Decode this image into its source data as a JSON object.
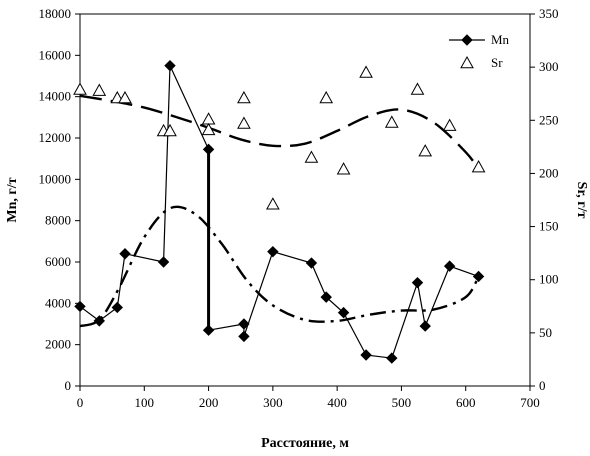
{
  "chart_data": {
    "type": "scatter",
    "xlabel": "Расстояние, м",
    "ylabel": "Mn, г/т",
    "y2label": "Sr, г/т",
    "xlim": [
      0,
      700
    ],
    "ylim": [
      0,
      18000
    ],
    "y2lim": [
      0,
      350
    ],
    "x_ticks": [
      0,
      100,
      200,
      300,
      400,
      500,
      600,
      700
    ],
    "y_ticks": [
      0,
      2000,
      4000,
      6000,
      8000,
      10000,
      12000,
      14000,
      16000,
      18000
    ],
    "y2_ticks": [
      0,
      50,
      100,
      150,
      200,
      250,
      300,
      350
    ],
    "grid": false,
    "legend_position": "top-right",
    "series": [
      {
        "name": "Mn",
        "axis": "left",
        "marker": "diamond",
        "style": "solid-line",
        "points": [
          [
            0,
            3850
          ],
          [
            30,
            3150
          ],
          [
            58,
            3800
          ],
          [
            70,
            6400
          ],
          [
            130,
            6000
          ],
          [
            140,
            15500
          ],
          [
            200,
            11450
          ],
          [
            200,
            2700
          ],
          [
            255,
            3000
          ],
          [
            255,
            2400
          ],
          [
            300,
            6500
          ],
          [
            360,
            5950
          ],
          [
            383,
            4300
          ],
          [
            410,
            3550
          ],
          [
            445,
            1500
          ],
          [
            485,
            1350
          ],
          [
            525,
            5000
          ],
          [
            537,
            2900
          ],
          [
            575,
            5800
          ],
          [
            620,
            5300
          ]
        ]
      },
      {
        "name": "Sr",
        "axis": "right",
        "marker": "triangle-open",
        "style": "none",
        "points": [
          [
            0,
            279
          ],
          [
            30,
            278
          ],
          [
            58,
            271
          ],
          [
            70,
            271
          ],
          [
            130,
            240
          ],
          [
            140,
            240
          ],
          [
            200,
            251
          ],
          [
            200,
            241
          ],
          [
            255,
            271
          ],
          [
            255,
            247
          ],
          [
            300,
            171
          ],
          [
            360,
            215
          ],
          [
            383,
            271
          ],
          [
            410,
            204
          ],
          [
            445,
            295
          ],
          [
            485,
            248
          ],
          [
            525,
            279
          ],
          [
            537,
            221
          ],
          [
            575,
            245
          ],
          [
            620,
            206
          ]
        ]
      }
    ],
    "trend_lines": [
      {
        "of": "Sr",
        "axis": "right",
        "style": "long-dash",
        "points": [
          [
            0,
            273
          ],
          [
            50,
            268
          ],
          [
            100,
            262
          ],
          [
            150,
            253
          ],
          [
            200,
            243
          ],
          [
            250,
            232
          ],
          [
            300,
            226
          ],
          [
            350,
            228
          ],
          [
            400,
            240
          ],
          [
            450,
            254
          ],
          [
            500,
            260
          ],
          [
            550,
            248
          ],
          [
            600,
            220
          ],
          [
            620,
            204
          ]
        ]
      },
      {
        "of": "Mn",
        "axis": "left",
        "style": "dash-dot",
        "points": [
          [
            0,
            2900
          ],
          [
            30,
            3200
          ],
          [
            60,
            4700
          ],
          [
            100,
            7200
          ],
          [
            140,
            8600
          ],
          [
            180,
            8300
          ],
          [
            220,
            6900
          ],
          [
            260,
            5100
          ],
          [
            300,
            3900
          ],
          [
            350,
            3200
          ],
          [
            400,
            3150
          ],
          [
            450,
            3450
          ],
          [
            500,
            3650
          ],
          [
            550,
            3700
          ],
          [
            600,
            4300
          ],
          [
            620,
            5300
          ]
        ]
      }
    ]
  },
  "colors": {
    "axis": "#000000",
    "series": "#000000",
    "background": "#ffffff"
  }
}
